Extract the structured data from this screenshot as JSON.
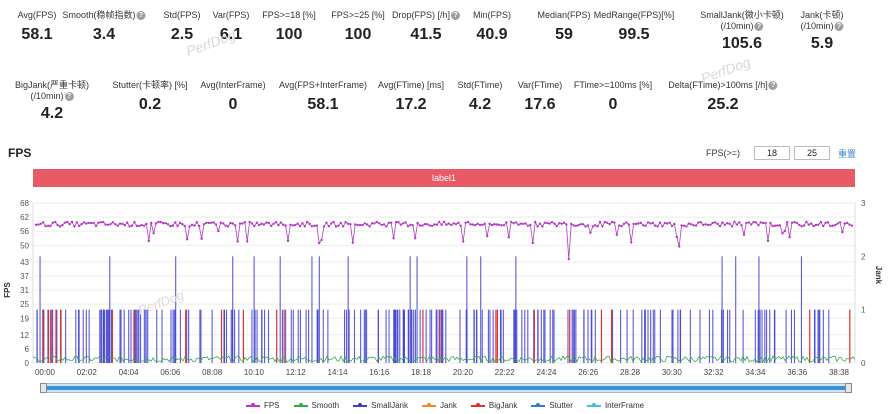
{
  "stats_row1": [
    {
      "label": "Avg(FPS)",
      "value": "58.1",
      "q": false
    },
    {
      "label": "Smooth(稳帧指数)",
      "value": "3.4",
      "q": true
    },
    {
      "label": "Std(FPS)",
      "value": "2.5",
      "q": false
    },
    {
      "label": "Var(FPS)",
      "value": "6.1",
      "q": false
    },
    {
      "label": "FPS>=18 [%]",
      "value": "100",
      "q": false
    },
    {
      "label": "FPS>=25 [%]",
      "value": "100",
      "q": false
    },
    {
      "label": "Drop(FPS) [/h]",
      "value": "41.5",
      "q": true
    },
    {
      "label": "Min(FPS)",
      "value": "40.9",
      "q": false
    },
    {
      "label": "Median(FPS)",
      "value": "59",
      "q": false
    },
    {
      "label": "MedRange(FPS)[%]",
      "value": "99.5",
      "q": false
    },
    {
      "label": "SmallJank(微小卡顿)",
      "label2": "(/10min)",
      "value": "105.6",
      "q": true
    },
    {
      "label": "Jank(卡顿)",
      "label2": "(/10min)",
      "value": "5.9",
      "q": true
    }
  ],
  "stats_row2": [
    {
      "label": "BigJank(严重卡顿)",
      "label2": "(/10min)",
      "value": "4.2",
      "q": true
    },
    {
      "label": "Stutter(卡顿率) [%]",
      "value": "0.2",
      "q": false
    },
    {
      "label": "Avg(InterFrame)",
      "value": "0",
      "q": false
    },
    {
      "label": "Avg(FPS+InterFrame)",
      "value": "58.1",
      "q": false
    },
    {
      "label": "Avg(FTime) [ms]",
      "value": "17.2",
      "q": false
    },
    {
      "label": "Std(FTime)",
      "value": "4.2",
      "q": false
    },
    {
      "label": "Var(FTime)",
      "value": "17.6",
      "q": false
    },
    {
      "label": "FTime>=100ms [%]",
      "value": "0",
      "q": false
    },
    {
      "label": "Delta(FTime)>100ms [/h]",
      "value": "25.2",
      "q": true
    }
  ],
  "fps_section": {
    "title": "FPS",
    "threshold_label": "FPS(>=)",
    "threshold_1": "18",
    "threshold_2": "25",
    "reset_label": "重置",
    "label_bar": "label1"
  },
  "watermark": "PerfDog",
  "chart_data": {
    "type": "line",
    "y_left_label": "FPS",
    "y_right_label": "Jank",
    "y_left_ticks": [
      0,
      6,
      12,
      19,
      25,
      31,
      37,
      43,
      50,
      56,
      62,
      68
    ],
    "y_right_ticks": [
      0,
      1,
      2,
      3
    ],
    "x_ticks": [
      "00:00",
      "02:02",
      "04:04",
      "06:06",
      "08:08",
      "10:10",
      "12:12",
      "14:14",
      "16:16",
      "18:18",
      "20:20",
      "22:22",
      "24:24",
      "26:26",
      "28:28",
      "30:30",
      "32:32",
      "34:34",
      "36:36",
      "38:38"
    ],
    "fps_baseline": 59,
    "fps_min": 40.9,
    "series": [
      {
        "name": "FPS",
        "color": "#b03cbf"
      },
      {
        "name": "Smooth",
        "color": "#3aa64a"
      },
      {
        "name": "SmallJank",
        "color": "#3f3fd0"
      },
      {
        "name": "Jank",
        "color": "#f08a24"
      },
      {
        "name": "BigJank",
        "color": "#e0302e"
      },
      {
        "name": "Stutter",
        "color": "#2f7fd6"
      },
      {
        "name": "InterFrame",
        "color": "#3fc4d6"
      }
    ]
  }
}
